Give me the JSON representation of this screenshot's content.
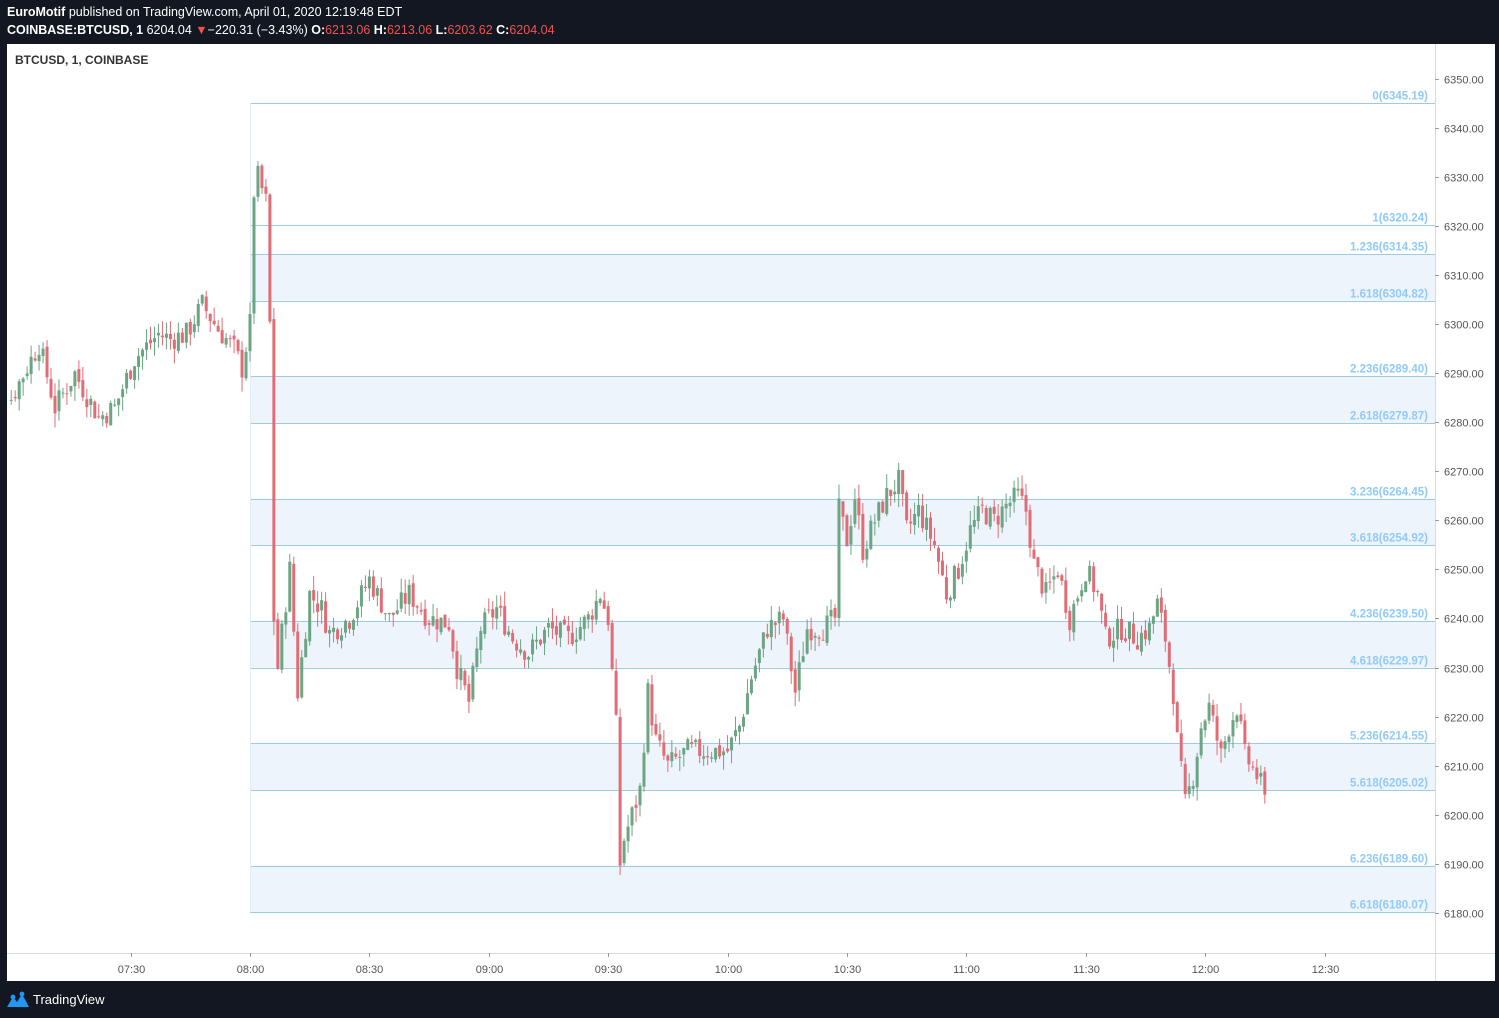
{
  "header": {
    "author": "EuroMotif",
    "published_text": "published on TradingView.com, April 01, 2020 12:19:48 EDT",
    "symbol": "COINBASE:BTCUSD, 1",
    "last_price": "6204.04",
    "change_arrow": "▼",
    "change": "−220.31 (−3.43%)",
    "open_label": "O:",
    "open_value": "6213.06",
    "high_label": "H:",
    "high_value": "6213.06",
    "low_label": "L:",
    "low_value": "6203.62",
    "close_label": "C:",
    "close_value": "6204.04"
  },
  "footer": {
    "brand": "TradingView"
  },
  "colors": {
    "background": "#131722",
    "pane": "#ffffff",
    "up_candle": "#6ba583",
    "down_candle": "#e06c75",
    "fib_line": "#9ccbe3",
    "fib_label": "#90caf9",
    "fib_band": "#eef4fb",
    "axis_text": "#555555",
    "change_red": "#ef5350"
  },
  "chart_data": {
    "type": "candlestick",
    "title": "BTCUSD, 1, COINBASE",
    "ylim": [
      6173.5,
      6353
    ],
    "xlim_minutes": [
      413,
      763
    ],
    "y_ticks": [
      6180,
      6190,
      6200,
      6210,
      6220,
      6230,
      6240,
      6250,
      6260,
      6270,
      6280,
      6290,
      6300,
      6310,
      6320,
      6330,
      6340,
      6350
    ],
    "x_ticks": [
      {
        "label": "07:30",
        "minute": 450
      },
      {
        "label": "08:00",
        "minute": 480
      },
      {
        "label": "08:30",
        "minute": 510
      },
      {
        "label": "09:00",
        "minute": 540
      },
      {
        "label": "09:30",
        "minute": 570
      },
      {
        "label": "10:00",
        "minute": 600
      },
      {
        "label": "10:30",
        "minute": 630
      },
      {
        "label": "11:00",
        "minute": 660
      },
      {
        "label": "11:30",
        "minute": 690
      },
      {
        "label": "12:00",
        "minute": 720
      },
      {
        "label": "12:30",
        "minute": 750
      }
    ],
    "fib_extension": {
      "start_minute": 480,
      "levels": [
        {
          "label": "0(6345.19)",
          "value": 6345.19,
          "band": false
        },
        {
          "label": "1(6320.24)",
          "value": 6320.24,
          "band": false
        },
        {
          "label": "1.236(6314.35)",
          "value": 6314.35,
          "band": true
        },
        {
          "label": "1.618(6304.82)",
          "value": 6304.82,
          "band": false
        },
        {
          "label": "2.236(6289.40)",
          "value": 6289.4,
          "band": true
        },
        {
          "label": "2.618(6279.87)",
          "value": 6279.87,
          "band": false
        },
        {
          "label": "3.236(6264.45)",
          "value": 6264.45,
          "band": true
        },
        {
          "label": "3.618(6254.92)",
          "value": 6254.92,
          "band": false
        },
        {
          "label": "4.236(6239.50)",
          "value": 6239.5,
          "band": true
        },
        {
          "label": "4.618(6229.97)",
          "value": 6229.97,
          "band": false
        },
        {
          "label": "5.236(6214.55)",
          "value": 6214.55,
          "band": true
        },
        {
          "label": "5.618(6205.02)",
          "value": 6205.02,
          "band": false
        },
        {
          "label": "6.236(6189.60)",
          "value": 6189.6,
          "band": true
        },
        {
          "label": "6.618(6180.07)",
          "value": 6180.07,
          "band": false
        }
      ]
    },
    "anchors": [
      [
        413,
        6294
      ],
      [
        420,
        6285
      ],
      [
        427,
        6296
      ],
      [
        431,
        6283
      ],
      [
        436,
        6290
      ],
      [
        442,
        6281
      ],
      [
        446,
        6283
      ],
      [
        451,
        6293
      ],
      [
        457,
        6298
      ],
      [
        460,
        6297
      ],
      [
        464,
        6298
      ],
      [
        468,
        6304
      ],
      [
        472,
        6299
      ],
      [
        476,
        6295
      ],
      [
        478,
        6291
      ],
      [
        480,
        6300
      ],
      [
        481,
        6327
      ],
      [
        482,
        6330
      ],
      [
        484,
        6325
      ],
      [
        485,
        6300
      ],
      [
        486,
        6240
      ],
      [
        487,
        6230
      ],
      [
        488,
        6237
      ],
      [
        490,
        6250
      ],
      [
        492,
        6225
      ],
      [
        495,
        6245
      ],
      [
        498,
        6242
      ],
      [
        500,
        6237
      ],
      [
        505,
        6240
      ],
      [
        510,
        6248
      ],
      [
        515,
        6240
      ],
      [
        520,
        6245
      ],
      [
        525,
        6240
      ],
      [
        530,
        6239
      ],
      [
        532,
        6230
      ],
      [
        535,
        6223
      ],
      [
        538,
        6238
      ],
      [
        542,
        6242
      ],
      [
        546,
        6236
      ],
      [
        550,
        6233
      ],
      [
        555,
        6238
      ],
      [
        560,
        6236
      ],
      [
        565,
        6240
      ],
      [
        568,
        6245
      ],
      [
        570,
        6240
      ],
      [
        572,
        6218
      ],
      [
        573,
        6190
      ],
      [
        574,
        6195
      ],
      [
        576,
        6200
      ],
      [
        578,
        6205
      ],
      [
        580,
        6225
      ],
      [
        582,
        6215
      ],
      [
        585,
        6210
      ],
      [
        590,
        6213
      ],
      [
        595,
        6213
      ],
      [
        600,
        6213
      ],
      [
        603,
        6218
      ],
      [
        606,
        6228
      ],
      [
        610,
        6238
      ],
      [
        614,
        6240
      ],
      [
        617,
        6225
      ],
      [
        620,
        6238
      ],
      [
        624,
        6238
      ],
      [
        627,
        6240
      ],
      [
        628,
        6262
      ],
      [
        630,
        6256
      ],
      [
        632,
        6265
      ],
      [
        634,
        6254
      ],
      [
        637,
        6260
      ],
      [
        640,
        6265
      ],
      [
        643,
        6268
      ],
      [
        645,
        6258
      ],
      [
        648,
        6262
      ],
      [
        652,
        6255
      ],
      [
        655,
        6245
      ],
      [
        658,
        6250
      ],
      [
        661,
        6258
      ],
      [
        664,
        6262
      ],
      [
        667,
        6260
      ],
      [
        670,
        6263
      ],
      [
        673,
        6265
      ],
      [
        675,
        6262
      ],
      [
        677,
        6251
      ],
      [
        680,
        6245
      ],
      [
        683,
        6250
      ],
      [
        686,
        6240
      ],
      [
        690,
        6250
      ],
      [
        693,
        6245
      ],
      [
        695,
        6236
      ],
      [
        699,
        6238
      ],
      [
        703,
        6236
      ],
      [
        706,
        6238
      ],
      [
        708,
        6243
      ],
      [
        710,
        6236
      ],
      [
        712,
        6225
      ],
      [
        713,
        6215
      ],
      [
        715,
        6202
      ],
      [
        717,
        6208
      ],
      [
        719,
        6218
      ],
      [
        721,
        6222
      ],
      [
        724,
        6212
      ],
      [
        726,
        6218
      ],
      [
        728,
        6222
      ],
      [
        730,
        6212
      ],
      [
        733,
        6208
      ],
      [
        735,
        6204.04
      ]
    ],
    "series": [
      {
        "name": "BTCUSD",
        "last_close": 6204.04
      }
    ]
  }
}
